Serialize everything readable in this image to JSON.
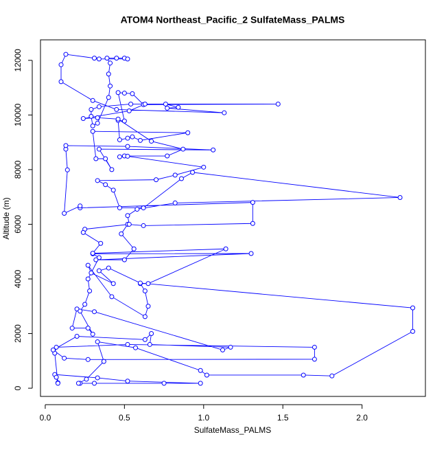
{
  "chart_data": {
    "type": "line",
    "title": "ATOM4 Northeast_Pacific_2 SulfateMass_PALMS",
    "x_label": "SulfateMass_PALMS",
    "y_label": "Altitude (m)",
    "color": "#0000ff",
    "markers": true,
    "xlim": [
      -0.03,
      2.4
    ],
    "ylim": [
      -300,
      12750
    ],
    "xticks": [
      {
        "value": 0,
        "label": "0.0"
      },
      0.5,
      {
        "value": 1,
        "label": "1.0"
      },
      1.5,
      {
        "value": 2,
        "label": "2.0"
      }
    ],
    "yticks": [
      0,
      2000,
      4000,
      6000,
      8000,
      10000,
      12000
    ],
    "x": [
      0.22,
      0.31,
      0.75,
      0.98,
      0.52,
      0.33,
      0.06,
      0.07,
      0.08,
      0.08,
      0.06,
      0.07,
      0.52,
      1.7,
      1.7,
      0.27,
      0.12,
      0.05,
      0.2,
      0.63,
      0.67,
      0.66,
      1.17,
      1.12,
      0.31,
      0.2,
      0.17,
      0.27,
      0.3,
      0.22,
      0.25,
      0.28,
      0.27,
      0.34,
      0.3,
      1.3,
      0.32,
      0.5,
      0.56,
      0.48,
      0.52,
      0.62,
      1.31,
      1.31,
      0.22,
      0.22,
      0.12,
      0.14,
      0.13,
      0.13,
      0.52,
      1.06,
      0.34,
      0.42,
      0.38,
      0.32,
      0.3,
      0.9,
      0.6,
      0.55,
      0.52,
      0.47,
      0.46,
      0.5,
      0.46,
      0.5,
      0.55,
      0.62,
      1.47,
      0.54,
      0.34,
      0.29,
      0.29,
      0.3,
      0.33,
      0.4,
      0.41,
      0.4,
      0.41,
      0.39,
      0.45,
      0.5,
      0.52,
      0.34,
      0.31,
      0.13,
      0.1,
      0.1,
      0.3,
      0.45,
      1.13,
      0.77,
      0.84,
      0.76,
      0.63,
      0.53,
      0.24,
      0.33,
      0.46,
      0.67,
      0.87,
      0.77,
      0.5,
      0.47,
      0.52,
      1.0,
      0.82,
      0.7,
      0.33,
      0.38,
      0.43,
      0.47,
      0.62,
      0.86,
      0.93,
      2.24,
      0.82,
      0.58,
      0.52,
      0.53,
      0.25,
      0.24,
      0.35,
      0.3,
      1.14,
      0.65,
      0.6,
      0.63,
      0.65,
      0.63,
      0.42,
      0.27,
      0.29,
      0.43,
      0.34,
      0.4,
      0.6,
      2.32,
      2.32,
      1.81,
      1.63,
      1.02,
      0.98,
      0.57,
      0.33,
      0.37,
      0.26,
      0.21
    ],
    "values": [
      180,
      180,
      180,
      180,
      260,
      380,
      500,
      400,
      200,
      180,
      1280,
      1500,
      1600,
      1500,
      1060,
      1050,
      1100,
      1400,
      1900,
      1780,
      2000,
      1600,
      1500,
      1400,
      2800,
      2900,
      2200,
      2200,
      1980,
      2820,
      3070,
      3560,
      4000,
      4780,
      4920,
      4930,
      4700,
      4700,
      5100,
      5650,
      6000,
      5950,
      6030,
      6800,
      6600,
      6670,
      6400,
      7990,
      8750,
      8880,
      8850,
      8720,
      8750,
      8000,
      8400,
      8400,
      9400,
      9350,
      9070,
      9200,
      9150,
      9090,
      9800,
      9780,
      10820,
      10800,
      10780,
      10380,
      10400,
      10400,
      10300,
      10200,
      9950,
      9600,
      9700,
      10640,
      11060,
      11500,
      11900,
      12080,
      12080,
      12080,
      12050,
      12050,
      12080,
      12220,
      11840,
      11220,
      10530,
      10200,
      10080,
      10250,
      10280,
      10400,
      10400,
      10150,
      9870,
      9900,
      9850,
      9040,
      8750,
      8500,
      8500,
      8470,
      8490,
      8090,
      7800,
      7630,
      7600,
      7450,
      7250,
      6600,
      6600,
      7670,
      7900,
      6980,
      6780,
      6550,
      6320,
      6000,
      5820,
      5700,
      5300,
      4940,
      5100,
      3830,
      3830,
      3560,
      3000,
      2620,
      3350,
      4500,
      4220,
      3830,
      4300,
      4400,
      3850,
      2940,
      2080,
      450,
      480,
      480,
      650,
      1480,
      1700,
      980,
      330,
      180
    ]
  }
}
